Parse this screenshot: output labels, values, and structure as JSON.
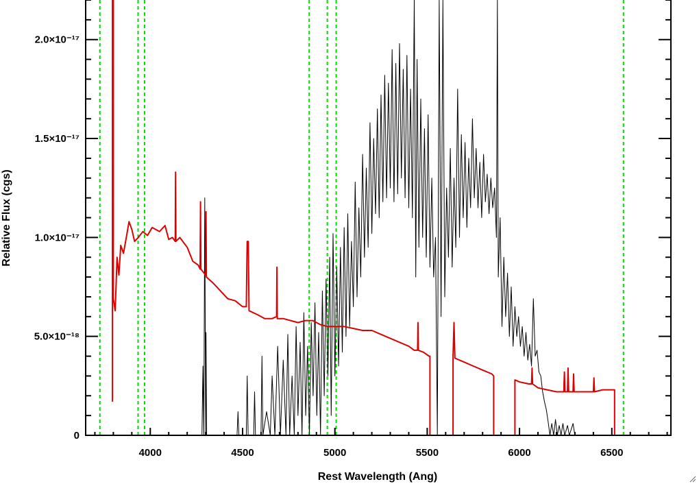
{
  "chart_data": {
    "type": "line",
    "title": "",
    "xlabel": "Rest Wavelength (Ang)",
    "ylabel": "Relative Flux (cgs)",
    "xlim": [
      3650,
      6820
    ],
    "ylim": [
      0,
      2.2e-17
    ],
    "x_ticks": [
      {
        "value": 4000,
        "label": "4000"
      },
      {
        "value": 4500,
        "label": "4500"
      },
      {
        "value": 5000,
        "label": "5000"
      },
      {
        "value": 5500,
        "label": "5500"
      },
      {
        "value": 6000,
        "label": "6000"
      },
      {
        "value": 6500,
        "label": "6500"
      }
    ],
    "y_ticks": [
      {
        "value": 0,
        "label": "0"
      },
      {
        "value": 5e-18,
        "label": "5.0×10⁻¹⁸"
      },
      {
        "value": 1e-17,
        "label": "1.0×10⁻¹⁷"
      },
      {
        "value": 1.5e-17,
        "label": "1.5×10⁻¹⁷"
      },
      {
        "value": 2e-17,
        "label": "2.0×10⁻¹⁷"
      }
    ],
    "reference_lines": {
      "color": "#00dd00",
      "style": "dashed",
      "x": [
        3727,
        3934,
        3969,
        4861,
        4959,
        5007,
        6563
      ]
    },
    "series": [
      {
        "color": "#dd0000",
        "points": [
          [
            3795,
            1.7e-18
          ],
          [
            3795,
            2.3e-17
          ],
          [
            3800,
            2.3e-17
          ],
          [
            3800,
            6.9e-18
          ],
          [
            3810,
            6.3e-18
          ],
          [
            3820,
            9e-18
          ],
          [
            3830,
            8.1e-18
          ],
          [
            3840,
            9.6e-18
          ],
          [
            3855,
            9.2e-18
          ],
          [
            3870,
            1e-17
          ],
          [
            3885,
            1.08e-17
          ],
          [
            3900,
            1.04e-17
          ],
          [
            3915,
            9.8e-18
          ],
          [
            3935,
            1e-17
          ],
          [
            3960,
            1.03e-17
          ],
          [
            3985,
            1.01e-17
          ],
          [
            4010,
            1.05e-17
          ],
          [
            4050,
            1.03e-17
          ],
          [
            4080,
            1.06e-17
          ],
          [
            4100,
            9.9e-18
          ],
          [
            4120,
            1e-17
          ],
          [
            4135,
            9.8e-18
          ],
          [
            4137,
            1.33e-17
          ],
          [
            4139,
            9.8e-18
          ],
          [
            4160,
            1e-17
          ],
          [
            4200,
            9.5e-18
          ],
          [
            4230,
            8.8e-18
          ],
          [
            4260,
            8.6e-18
          ],
          [
            4270,
            8.4e-18
          ],
          [
            4272,
            1.18e-17
          ],
          [
            4274,
            8.4e-18
          ],
          [
            4300,
            8.1e-18
          ],
          [
            4302,
            1.13e-17
          ],
          [
            4304,
            8e-18
          ],
          [
            4340,
            7.7e-18
          ],
          [
            4380,
            7.3e-18
          ],
          [
            4420,
            6.9e-18
          ],
          [
            4460,
            6.8e-18
          ],
          [
            4500,
            6.5e-18
          ],
          [
            4520,
            6.5e-18
          ],
          [
            4525,
            9.8e-18
          ],
          [
            4531,
            9.8e-18
          ],
          [
            4535,
            6.3e-18
          ],
          [
            4580,
            6.1e-18
          ],
          [
            4620,
            5.9e-18
          ],
          [
            4660,
            5.9e-18
          ],
          [
            4684,
            6e-18
          ],
          [
            4686,
            8.5e-18
          ],
          [
            4688,
            5.9e-18
          ],
          [
            4720,
            5.9e-18
          ],
          [
            4760,
            5.8e-18
          ],
          [
            4800,
            5.7e-18
          ],
          [
            4840,
            5.8e-18
          ],
          [
            4880,
            5.8e-18
          ],
          [
            4920,
            5.6e-18
          ],
          [
            4960,
            5.5e-18
          ],
          [
            5000,
            5.5e-18
          ],
          [
            5050,
            5.5e-18
          ],
          [
            5100,
            5.4e-18
          ],
          [
            5150,
            5.3e-18
          ],
          [
            5200,
            5.3e-18
          ],
          [
            5250,
            5.1e-18
          ],
          [
            5300,
            4.9e-18
          ],
          [
            5350,
            4.7e-18
          ],
          [
            5400,
            4.5e-18
          ],
          [
            5430,
            4.3e-18
          ],
          [
            5448,
            4.3e-18
          ],
          [
            5450,
            5.7e-18
          ],
          [
            5452,
            4.3e-18
          ],
          [
            5480,
            4.2e-18
          ],
          [
            5510,
            4e-18
          ],
          [
            5515,
            4e-18
          ],
          [
            5515,
            0
          ],
          [
            5640,
            0
          ],
          [
            5640,
            4e-18
          ],
          [
            5645,
            5.7e-18
          ],
          [
            5650,
            3.9e-18
          ],
          [
            5700,
            3.7e-18
          ],
          [
            5750,
            3.5e-18
          ],
          [
            5800,
            3.3e-18
          ],
          [
            5850,
            3.1e-18
          ],
          [
            5860,
            3e-18
          ],
          [
            5860,
            0
          ],
          [
            5975,
            0
          ],
          [
            5975,
            2.8e-18
          ],
          [
            6000,
            2.7e-18
          ],
          [
            6050,
            2.6e-18
          ],
          [
            6065,
            2.6e-18
          ],
          [
            6068,
            3.4e-18
          ],
          [
            6071,
            2.6e-18
          ],
          [
            6100,
            2.4e-18
          ],
          [
            6150,
            2.3e-18
          ],
          [
            6200,
            2.2e-18
          ],
          [
            6240,
            2.2e-18
          ],
          [
            6243,
            3.2e-18
          ],
          [
            6246,
            2.2e-18
          ],
          [
            6260,
            2.2e-18
          ],
          [
            6263,
            3.4e-18
          ],
          [
            6266,
            2.2e-18
          ],
          [
            6290,
            2.2e-18
          ],
          [
            6293,
            3.1e-18
          ],
          [
            6296,
            2.2e-18
          ],
          [
            6350,
            2.2e-18
          ],
          [
            6400,
            2.2e-18
          ],
          [
            6403,
            2.9e-18
          ],
          [
            6406,
            2.2e-18
          ],
          [
            6450,
            2.3e-18
          ],
          [
            6515,
            2.3e-18
          ],
          [
            6515,
            0
          ],
          [
            6820,
            0
          ]
        ]
      },
      {
        "color": "#000000",
        "points": [
          [
            4280,
            0
          ],
          [
            4285,
            3.5e-18
          ],
          [
            4290,
            0
          ],
          [
            4295,
            1.2e-17
          ],
          [
            4300,
            0
          ],
          [
            4302,
            5.2e-18
          ],
          [
            4305,
            0
          ],
          [
            4470,
            0
          ],
          [
            4475,
            1.2e-18
          ],
          [
            4480,
            0
          ],
          [
            4520,
            0
          ],
          [
            4525,
            3e-18
          ],
          [
            4530,
            0
          ],
          [
            4560,
            0
          ],
          [
            4565,
            2.2e-18
          ],
          [
            4570,
            0
          ],
          [
            4600,
            0
          ],
          [
            4605,
            4e-18
          ],
          [
            4610,
            0
          ],
          [
            4630,
            1.2e-18
          ],
          [
            4650,
            0
          ],
          [
            4660,
            3e-18
          ],
          [
            4675,
            0
          ],
          [
            4690,
            4.5e-18
          ],
          [
            4705,
            0
          ],
          [
            4720,
            3.8e-18
          ],
          [
            4735,
            0
          ],
          [
            4745,
            5.1e-18
          ],
          [
            4755,
            0
          ],
          [
            4768,
            3e-18
          ],
          [
            4780,
            0
          ],
          [
            4790,
            5.5e-18
          ],
          [
            4800,
            1e-18
          ],
          [
            4812,
            4.7e-18
          ],
          [
            4822,
            0
          ],
          [
            4832,
            6.2e-18
          ],
          [
            4842,
            1e-18
          ],
          [
            4852,
            4.5e-18
          ],
          [
            4862,
            0
          ],
          [
            4872,
            5.7e-18
          ],
          [
            4882,
            2e-18
          ],
          [
            4892,
            6.7e-18
          ],
          [
            4902,
            1e-18
          ],
          [
            4912,
            5.2e-18
          ],
          [
            4922,
            0
          ],
          [
            4932,
            7.3e-18
          ],
          [
            4942,
            2e-18
          ],
          [
            4952,
            7.9e-18
          ],
          [
            4962,
            3e-18
          ],
          [
            4972,
            9e-18
          ],
          [
            4980,
            1e-18
          ],
          [
            4990,
            1.02e-17
          ],
          [
            5000,
            3e-18
          ],
          [
            5010,
            8.5e-18
          ],
          [
            5020,
            3.5e-18
          ],
          [
            5030,
            9.5e-18
          ],
          [
            5040,
            4.2e-18
          ],
          [
            5050,
            1.05e-17
          ],
          [
            5060,
            5e-18
          ],
          [
            5070,
            1.12e-17
          ],
          [
            5080,
            5.5e-18
          ],
          [
            5090,
            9.8e-18
          ],
          [
            5100,
            6.5e-18
          ],
          [
            5110,
            1.28e-17
          ],
          [
            5120,
            7e-18
          ],
          [
            5130,
            1.15e-17
          ],
          [
            5140,
            8e-18
          ],
          [
            5150,
            1.42e-17
          ],
          [
            5160,
            9e-18
          ],
          [
            5170,
            1.35e-17
          ],
          [
            5180,
            9.5e-18
          ],
          [
            5190,
            1.58e-17
          ],
          [
            5200,
            1.02e-17
          ],
          [
            5210,
            1.5e-17
          ],
          [
            5220,
            1.12e-17
          ],
          [
            5230,
            1.65e-17
          ],
          [
            5240,
            1.1e-17
          ],
          [
            5250,
            1.72e-17
          ],
          [
            5260,
            1.18e-17
          ],
          [
            5270,
            1.82e-17
          ],
          [
            5280,
            1.2e-17
          ],
          [
            5290,
            1.78e-17
          ],
          [
            5300,
            1.25e-17
          ],
          [
            5310,
            1.95e-17
          ],
          [
            5320,
            1.18e-17
          ],
          [
            5330,
            1.88e-17
          ],
          [
            5340,
            1.22e-17
          ],
          [
            5350,
            1.98e-17
          ],
          [
            5360,
            1.3e-17
          ],
          [
            5370,
            1.85e-17
          ],
          [
            5380,
            1.2e-17
          ],
          [
            5390,
            1.92e-17
          ],
          [
            5400,
            1.15e-17
          ],
          [
            5410,
            1.75e-17
          ],
          [
            5420,
            1.1e-17
          ],
          [
            5430,
            2.2e-17
          ],
          [
            5438,
            8e-18
          ],
          [
            5445,
            1.9e-17
          ],
          [
            5455,
            9.5e-18
          ],
          [
            5465,
            1.7e-17
          ],
          [
            5475,
            1e-17
          ],
          [
            5485,
            1.55e-17
          ],
          [
            5495,
            9e-18
          ],
          [
            5505,
            1.62e-17
          ],
          [
            5515,
            8.5e-18
          ],
          [
            5525,
            1.3e-17
          ],
          [
            5535,
            8e-18
          ],
          [
            5545,
            1e-17
          ],
          [
            5555,
            0
          ],
          [
            5565,
            2.2e-17
          ],
          [
            5575,
            6e-18
          ],
          [
            5585,
            2.2e-17
          ],
          [
            5595,
            7e-18
          ],
          [
            5605,
            1.25e-17
          ],
          [
            5615,
            9e-18
          ],
          [
            5625,
            1.45e-17
          ],
          [
            5635,
            8.5e-18
          ],
          [
            5645,
            1.3e-17
          ],
          [
            5655,
            9.5e-18
          ],
          [
            5665,
            1.75e-17
          ],
          [
            5675,
            1e-17
          ],
          [
            5685,
            1.52e-17
          ],
          [
            5695,
            1.1e-17
          ],
          [
            5705,
            1.48e-17
          ],
          [
            5715,
            1.05e-17
          ],
          [
            5725,
            1.4e-17
          ],
          [
            5735,
            1.15e-17
          ],
          [
            5745,
            1.6e-17
          ],
          [
            5755,
            1.2e-17
          ],
          [
            5765,
            1.45e-17
          ],
          [
            5775,
            1.15e-17
          ],
          [
            5785,
            1.38e-17
          ],
          [
            5795,
            1.1e-17
          ],
          [
            5805,
            1.42e-17
          ],
          [
            5815,
            1.18e-17
          ],
          [
            5825,
            1.32e-17
          ],
          [
            5835,
            1.12e-17
          ],
          [
            5845,
            1.3e-17
          ],
          [
            5855,
            1.15e-17
          ],
          [
            5865,
            1.25e-17
          ],
          [
            5875,
            1e-17
          ],
          [
            5880,
            2.2e-17
          ],
          [
            5885,
            8e-18
          ],
          [
            5895,
            1.1e-17
          ],
          [
            5905,
            5.5e-18
          ],
          [
            5915,
            9e-18
          ],
          [
            5925,
            6e-18
          ],
          [
            5935,
            8.2e-18
          ],
          [
            5945,
            5e-18
          ],
          [
            5955,
            7.5e-18
          ],
          [
            5965,
            4.5e-18
          ],
          [
            5975,
            6.5e-18
          ],
          [
            5985,
            5e-18
          ],
          [
            5995,
            6e-18
          ],
          [
            6005,
            4.5e-18
          ],
          [
            6015,
            5.5e-18
          ],
          [
            6025,
            4e-18
          ],
          [
            6035,
            5.2e-18
          ],
          [
            6045,
            3.8e-18
          ],
          [
            6055,
            4.6e-18
          ],
          [
            6065,
            3.5e-18
          ],
          [
            6075,
            6.9e-18
          ],
          [
            6085,
            4e-18
          ],
          [
            6095,
            4.3e-18
          ],
          [
            6105,
            3.2e-18
          ],
          [
            6115,
            3e-18
          ],
          [
            6125,
            2.2e-18
          ],
          [
            6135,
            1.7e-18
          ],
          [
            6145,
            1.3e-18
          ],
          [
            6155,
            7e-19
          ],
          [
            6165,
            0
          ],
          [
            6175,
            6e-19
          ],
          [
            6185,
            0
          ],
          [
            6195,
            8e-19
          ],
          [
            6205,
            0
          ],
          [
            6215,
            5e-19
          ],
          [
            6225,
            0
          ],
          [
            6235,
            6e-19
          ],
          [
            6245,
            0
          ],
          [
            6260,
            5e-19
          ],
          [
            6270,
            0
          ],
          [
            6290,
            6e-19
          ],
          [
            6300,
            0
          ]
        ]
      }
    ]
  }
}
